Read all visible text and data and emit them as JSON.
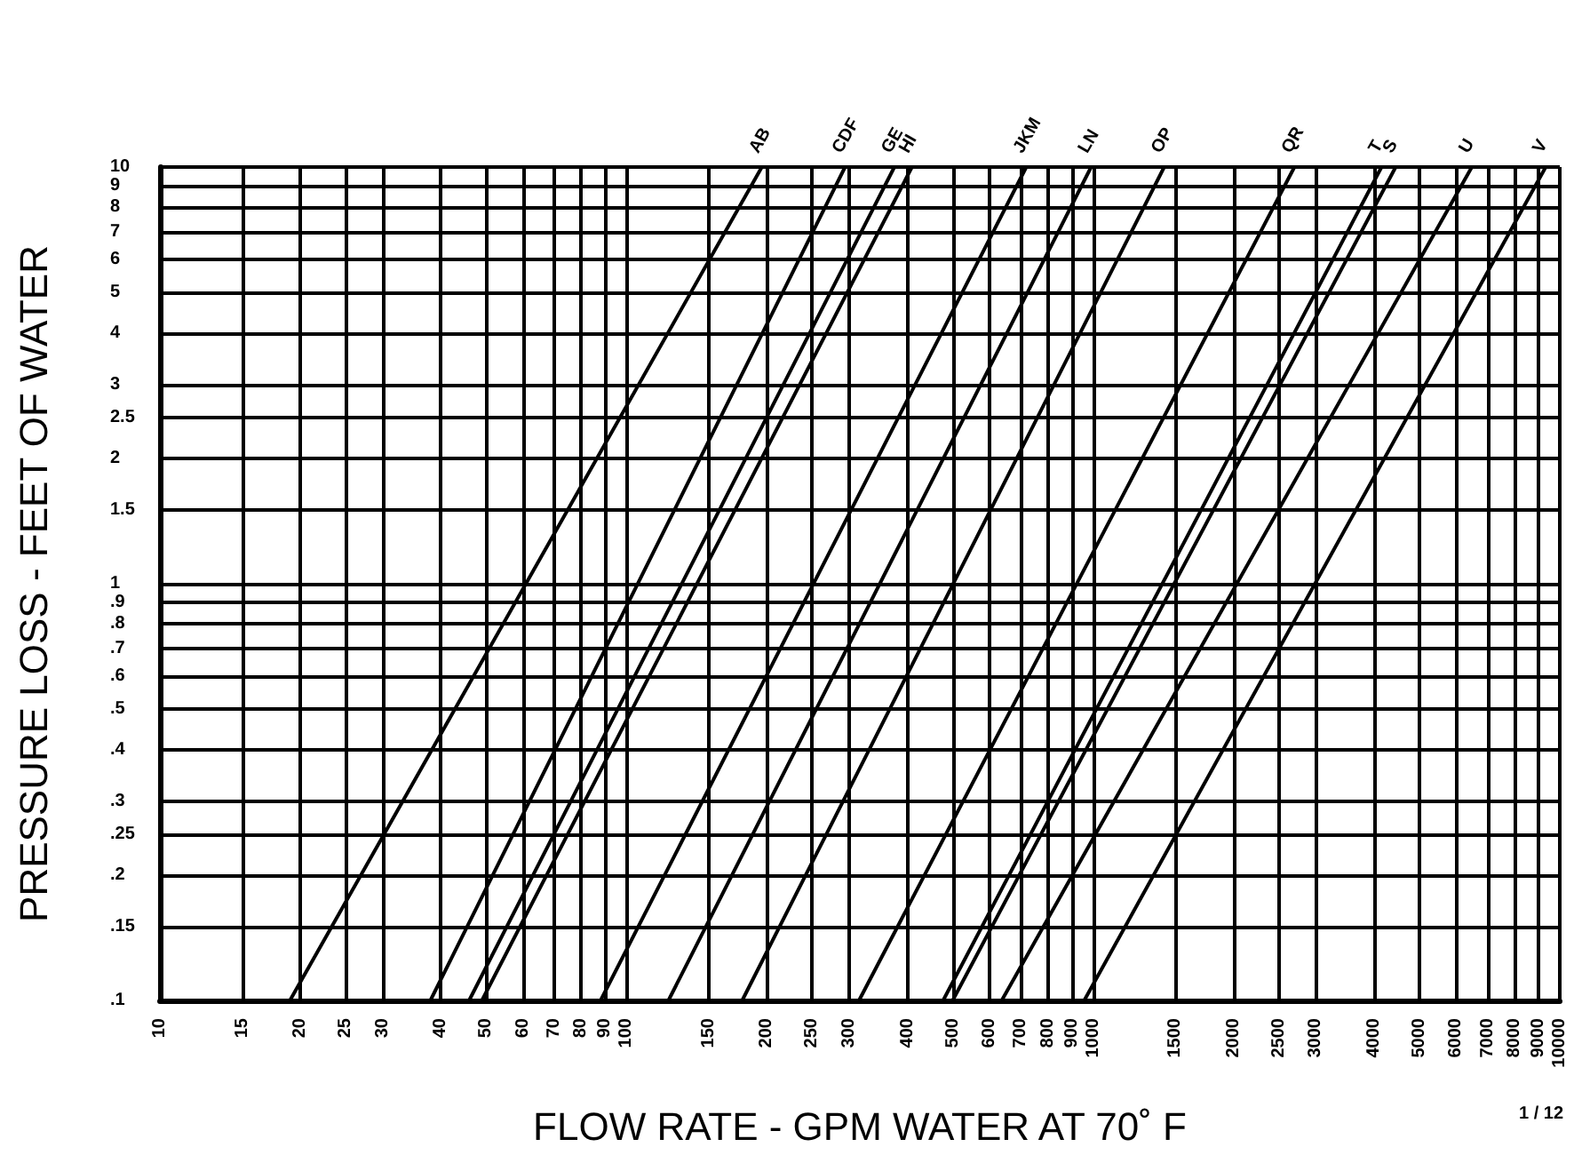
{
  "chart_data": {
    "type": "line",
    "xlabel": "FLOW RATE - GPM WATER AT 70˚ F",
    "ylabel": "PRESSURE LOSS - FEET OF WATER",
    "annotations": [
      "1 / 12"
    ],
    "log": "xy",
    "grid": true,
    "legend": false,
    "marker": "none",
    "line_style": "solid",
    "xlim": [
      10,
      10000
    ],
    "ylim": [
      0.1,
      10
    ],
    "xticks": [
      10,
      15,
      20,
      25,
      30,
      40,
      50,
      60,
      70,
      80,
      90,
      100,
      150,
      200,
      250,
      300,
      400,
      500,
      600,
      700,
      800,
      900,
      1000,
      1500,
      2000,
      2500,
      3000,
      4000,
      5000,
      6000,
      7000,
      8000,
      9000,
      10000
    ],
    "yticks": [
      {
        "value": 0.1,
        "label": ".1"
      },
      {
        "value": 0.15,
        "label": ".15"
      },
      {
        "value": 0.2,
        "label": ".2"
      },
      {
        "value": 0.25,
        "label": ".25"
      },
      {
        "value": 0.3,
        "label": ".3"
      },
      {
        "value": 0.4,
        "label": ".4"
      },
      {
        "value": 0.5,
        "label": ".5"
      },
      {
        "value": 0.6,
        "label": ".6"
      },
      {
        "value": 0.7,
        "label": ".7"
      },
      {
        "value": 0.8,
        "label": ".8"
      },
      {
        "value": 0.9,
        "label": ".9"
      },
      1,
      1.5,
      2,
      2.5,
      3,
      4,
      5,
      6,
      7,
      8,
      9,
      10
    ],
    "series": [
      {
        "name": "AB",
        "color": "#000000",
        "x": [
          19,
          195
        ],
        "values": [
          0.1,
          10
        ]
      },
      {
        "name": "CDF",
        "color": "#000000",
        "x": [
          38,
          294
        ],
        "values": [
          0.1,
          10
        ]
      },
      {
        "name": "GE",
        "color": "#000000",
        "x": [
          46,
          375
        ],
        "values": [
          0.1,
          10
        ]
      },
      {
        "name": "HI",
        "color": "#000000",
        "x": [
          49,
          409
        ],
        "values": [
          0.1,
          10
        ]
      },
      {
        "name": "JKM",
        "color": "#000000",
        "x": [
          88,
          719
        ],
        "values": [
          0.1,
          10
        ]
      },
      {
        "name": "LN",
        "color": "#000000",
        "x": [
          123,
          990
        ],
        "values": [
          0.1,
          10
        ]
      },
      {
        "name": "OP",
        "color": "#000000",
        "x": [
          177,
          1420
        ],
        "values": [
          0.1,
          10
        ]
      },
      {
        "name": "QR",
        "color": "#000000",
        "x": [
          315,
          2700
        ],
        "values": [
          0.1,
          10
        ]
      },
      {
        "name": "T",
        "color": "#000000",
        "x": [
          477,
          4150
        ],
        "values": [
          0.1,
          10
        ]
      },
      {
        "name": "S",
        "color": "#000000",
        "x": [
          500,
          4450
        ],
        "values": [
          0.1,
          10
        ]
      },
      {
        "name": "U",
        "color": "#000000",
        "x": [
          637,
          6480
        ],
        "values": [
          0.1,
          10
        ]
      },
      {
        "name": "V",
        "color": "#000000",
        "x": [
          957,
          9330
        ],
        "values": [
          0.1,
          10
        ]
      }
    ]
  }
}
